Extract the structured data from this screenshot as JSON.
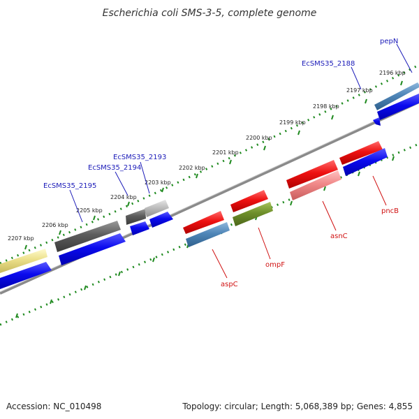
{
  "title": "Escherichia coli SMS-3-5, complete genome",
  "footer": {
    "accession": "Accession: NC_010498",
    "summary": "Topology: circular; Length: 5,068,389 bp; Genes: 4,855"
  },
  "scale_labels": [
    "2196 kbp",
    "2197 kbp",
    "2198 kbp",
    "2199 kbp",
    "2200 kbp",
    "2201 kbp",
    "2202 kbp",
    "2203 kbp",
    "2204 kbp",
    "2205 kbp",
    "2206 kbp",
    "2207 kbp"
  ],
  "gene_labels": {
    "pepN": "pepN",
    "EcSMS35_2188": "EcSMS35_2188",
    "EcSMS35_2193": "EcSMS35_2193",
    "EcSMS35_2194": "EcSMS35_2194",
    "EcSMS35_2195": "EcSMS35_2195",
    "aspC": "aspC",
    "ompF": "ompF",
    "asnC": "asnC",
    "pncB": "pncB"
  },
  "colors": {
    "backbone": "#8a8a8a",
    "tick": "#1f8a1f",
    "blue_label": "#1a1ab8",
    "red_label": "#d01010",
    "cds_blue": "#0a0aee",
    "cds_red": "#ee1111",
    "steel": "#4f86b8",
    "dark_gray": "#5c5c5c",
    "light_gray": "#bdbdbd",
    "olive": "#6e8f2a",
    "pink": "#f08888",
    "pale_yellow": "#ece08a"
  }
}
